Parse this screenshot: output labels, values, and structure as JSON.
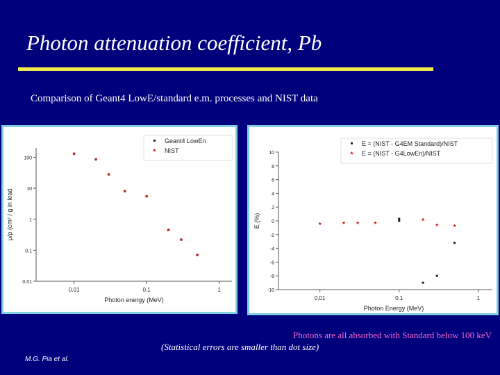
{
  "slide": {
    "title": "Photon attenuation coefficient, Pb",
    "subtitle": "Comparison of Geant4 LowE/standard e.m. processes and NIST data",
    "note_pink": "Photons are all absorbed with Standard below 100 keV",
    "note_white": "(Statistical errors are smaller than dot size)",
    "author": "M.G. Pia et al.",
    "colors": {
      "background": "#00007d",
      "title_underline": "#f2e94e",
      "panel_border": "#7fcfe0",
      "note_pink": "#ff66cc"
    }
  },
  "chart_data": [
    {
      "type": "scatter",
      "title": "",
      "xlabel": "Photon energy (MeV)",
      "ylabel": "μ/ρ (cm² / g in lead",
      "xscale": "log",
      "yscale": "log",
      "xlim": [
        0.003,
        1.5
      ],
      "ylim": [
        0.01,
        200
      ],
      "xticks": [
        {
          "value": 0.01,
          "label": "0.01"
        },
        {
          "value": 0.1,
          "label": "0.1"
        },
        {
          "value": 1,
          "label": "1"
        }
      ],
      "yticks": [
        {
          "value": 100,
          "label": "100"
        },
        {
          "value": 10,
          "label": "10"
        },
        {
          "value": 1,
          "label": "1"
        },
        {
          "value": 0.1,
          "label": "0.1"
        },
        {
          "value": 0.01,
          "label": "0.01"
        }
      ],
      "legend_position": "top-right",
      "series": [
        {
          "name": "Geant4 LowEn",
          "color": "#222222",
          "marker": "square",
          "x": [
            0.01,
            0.02,
            0.03,
            0.05,
            0.1,
            0.2,
            0.3,
            0.5
          ],
          "y": [
            130,
            85,
            28,
            8.0,
            5.5,
            0.45,
            0.22,
            0.07
          ]
        },
        {
          "name": "NIST",
          "color": "#d42020",
          "marker": "star",
          "x": [
            0.01,
            0.02,
            0.03,
            0.05,
            0.1,
            0.2,
            0.3,
            0.5
          ],
          "y": [
            130,
            85,
            28,
            8.0,
            5.5,
            0.45,
            0.22,
            0.07
          ]
        }
      ]
    },
    {
      "type": "scatter",
      "title": "",
      "xlabel": "Photon Energy (MeV)",
      "ylabel": "E (%)",
      "xscale": "log",
      "yscale": "linear",
      "xlim": [
        0.003,
        1.5
      ],
      "ylim": [
        -10,
        10
      ],
      "xticks": [
        {
          "value": 0.01,
          "label": "0.01"
        },
        {
          "value": 0.1,
          "label": "0.1"
        },
        {
          "value": 1,
          "label": "1"
        }
      ],
      "yticks": [
        {
          "value": 10,
          "label": "10"
        },
        {
          "value": 8,
          "label": "8"
        },
        {
          "value": 6,
          "label": "6"
        },
        {
          "value": 4,
          "label": "4"
        },
        {
          "value": 2,
          "label": "2"
        },
        {
          "value": 0,
          "label": "0"
        },
        {
          "value": -2,
          "label": "-2"
        },
        {
          "value": -4,
          "label": "-4"
        },
        {
          "value": -6,
          "label": "-6"
        },
        {
          "value": -8,
          "label": "-8"
        },
        {
          "value": -10,
          "label": "-10"
        }
      ],
      "legend_position": "top-right",
      "series": [
        {
          "name": "E = (NIST - G4EM Standard)/NIST",
          "color": "#222222",
          "marker": "square",
          "x": [
            0.1,
            0.1,
            0.2,
            0.3,
            0.5
          ],
          "y": [
            0.3,
            0.0,
            -9.0,
            -8.0,
            -3.2
          ]
        },
        {
          "name": "E = (NIST - G4LowEn)/NIST",
          "color": "#d42020",
          "marker": "star",
          "x": [
            0.01,
            0.02,
            0.03,
            0.05,
            0.2,
            0.3,
            0.5
          ],
          "y": [
            -0.4,
            -0.3,
            -0.3,
            -0.3,
            0.2,
            -0.6,
            -0.7
          ]
        }
      ]
    }
  ]
}
